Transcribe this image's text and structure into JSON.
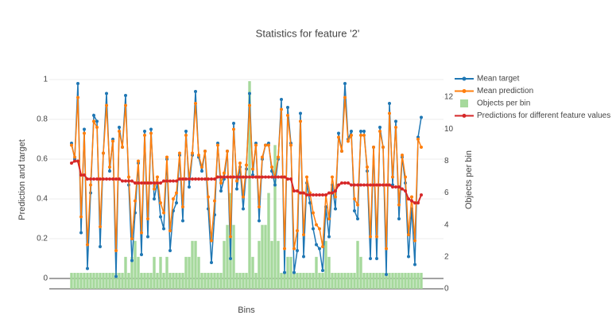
{
  "chart_data": {
    "type": "combo",
    "title": "Statistics for feature '2'",
    "x_label": "Bins",
    "y_label": "Prediction and target",
    "y2_label": "Objects per bin",
    "ylim": [
      -0.052,
      1.02
    ],
    "yticks": [
      0,
      0.2,
      0.4,
      0.6,
      0.8,
      1
    ],
    "y2lim": [
      0,
      13.35
    ],
    "y2ticks": [
      0,
      2,
      4,
      6,
      8,
      10,
      12
    ],
    "grid": true,
    "legend": "top-right",
    "series": [
      {
        "name": "Mean target",
        "kind": "line",
        "color": "#1f77b4",
        "values": [
          0.68,
          0.6,
          0.98,
          0.23,
          0.75,
          0.05,
          0.43,
          0.82,
          0.79,
          0.16,
          0.63,
          0.93,
          0.54,
          0.7,
          0.01,
          0.76,
          0.66,
          0.92,
          0.47,
          0.09,
          0.33,
          0.58,
          0.12,
          0.74,
          0.21,
          0.75,
          0.4,
          0.48,
          0.31,
          0.25,
          0.6,
          0.14,
          0.34,
          0.38,
          0.62,
          0.29,
          0.74,
          0.46,
          0.62,
          0.94,
          0.61,
          0.54,
          0.64,
          0.35,
          0.08,
          0.32,
          0.68,
          0.44,
          0.5,
          0.64,
          0.1,
          0.78,
          0.45,
          0.56,
          0.35,
          0.55,
          0.93,
          0.52,
          0.68,
          0.29,
          0.6,
          0.67,
          0.68,
          0.54,
          0.47,
          0.6,
          0.9,
          0.03,
          0.86,
          0.68,
          0.03,
          0.14,
          0.83,
          0.11,
          0.48,
          0.38,
          0.25,
          0.17,
          0.15,
          0.04,
          0.36,
          0.21,
          0.47,
          0.35,
          0.73,
          0.64,
          0.98,
          0.7,
          0.74,
          0.34,
          0.3,
          0.74,
          0.74,
          0.54,
          0.1,
          0.66,
          0.1,
          0.76,
          0.66,
          0.02,
          0.88,
          0.47,
          0.79,
          0.3,
          0.61,
          0.48,
          0.11,
          0.35,
          0.07,
          0.71,
          0.81
        ]
      },
      {
        "name": "Mean prediction",
        "kind": "line",
        "color": "#ff7f0e",
        "values": [
          0.67,
          0.61,
          0.91,
          0.31,
          0.73,
          0.17,
          0.47,
          0.79,
          0.76,
          0.26,
          0.63,
          0.87,
          0.56,
          0.69,
          0.14,
          0.74,
          0.66,
          0.87,
          0.51,
          0.2,
          0.39,
          0.59,
          0.23,
          0.72,
          0.3,
          0.73,
          0.45,
          0.51,
          0.38,
          0.33,
          0.61,
          0.24,
          0.4,
          0.43,
          0.63,
          0.36,
          0.72,
          0.5,
          0.63,
          0.88,
          0.62,
          0.56,
          0.64,
          0.41,
          0.19,
          0.39,
          0.67,
          0.48,
          0.53,
          0.64,
          0.21,
          0.75,
          0.49,
          0.58,
          0.41,
          0.57,
          0.87,
          0.55,
          0.67,
          0.36,
          0.61,
          0.67,
          0.67,
          0.56,
          0.51,
          0.61,
          0.85,
          0.15,
          0.82,
          0.67,
          0.15,
          0.24,
          0.79,
          0.22,
          0.51,
          0.43,
          0.33,
          0.27,
          0.25,
          0.16,
          0.42,
          0.3,
          0.51,
          0.41,
          0.71,
          0.64,
          0.91,
          0.69,
          0.72,
          0.4,
          0.37,
          0.72,
          0.72,
          0.56,
          0.21,
          0.66,
          0.21,
          0.74,
          0.66,
          0.15,
          0.83,
          0.51,
          0.76,
          0.37,
          0.62,
          0.51,
          0.22,
          0.41,
          0.19,
          0.7,
          0.66
        ]
      },
      {
        "name": "Objects per bin",
        "kind": "bar",
        "axis": "y2",
        "color": "#a6d99c",
        "values": [
          1,
          1,
          1,
          1,
          1,
          1,
          1,
          1,
          1,
          1,
          1,
          1,
          1,
          1,
          1,
          1,
          1,
          2,
          1,
          2,
          3,
          2,
          1,
          1,
          1,
          1,
          2,
          1,
          2,
          1,
          2,
          1,
          1,
          1,
          1,
          1,
          2,
          2,
          3,
          3,
          2,
          1,
          1,
          1,
          1,
          1,
          1,
          1,
          3,
          4,
          6,
          4,
          1,
          1,
          1,
          1,
          13,
          2,
          1,
          3,
          4,
          4,
          6,
          3,
          9,
          3,
          1,
          1,
          2,
          2,
          1,
          1,
          1,
          1,
          1,
          1,
          1,
          2,
          1,
          1,
          3,
          2,
          1,
          1,
          1,
          1,
          1,
          1,
          1,
          1,
          3,
          2,
          1,
          1,
          1,
          1,
          1,
          1,
          1,
          1,
          1,
          1,
          1,
          1,
          1,
          1,
          1,
          1,
          1,
          1,
          1
        ]
      },
      {
        "name": "Predictions for different feature values",
        "kind": "line",
        "color": "#d62728",
        "values": [
          0.58,
          0.59,
          0.59,
          0.52,
          0.52,
          0.5,
          0.5,
          0.5,
          0.5,
          0.5,
          0.5,
          0.5,
          0.5,
          0.5,
          0.5,
          0.5,
          0.49,
          0.49,
          0.49,
          0.49,
          0.48,
          0.48,
          0.48,
          0.48,
          0.48,
          0.48,
          0.48,
          0.48,
          0.48,
          0.49,
          0.49,
          0.49,
          0.49,
          0.49,
          0.5,
          0.5,
          0.5,
          0.5,
          0.5,
          0.5,
          0.5,
          0.5,
          0.5,
          0.5,
          0.5,
          0.5,
          0.51,
          0.51,
          0.51,
          0.51,
          0.51,
          0.51,
          0.51,
          0.51,
          0.51,
          0.51,
          0.51,
          0.51,
          0.51,
          0.51,
          0.51,
          0.51,
          0.51,
          0.51,
          0.51,
          0.51,
          0.51,
          0.51,
          0.5,
          0.5,
          0.44,
          0.44,
          0.43,
          0.43,
          0.42,
          0.42,
          0.42,
          0.42,
          0.42,
          0.42,
          0.42,
          0.43,
          0.43,
          0.44,
          0.47,
          0.48,
          0.48,
          0.48,
          0.47,
          0.47,
          0.47,
          0.47,
          0.47,
          0.47,
          0.47,
          0.47,
          0.47,
          0.47,
          0.47,
          0.47,
          0.47,
          0.46,
          0.46,
          0.46,
          0.45,
          0.44,
          0.4,
          0.39,
          0.38,
          0.38,
          0.42
        ]
      }
    ]
  }
}
